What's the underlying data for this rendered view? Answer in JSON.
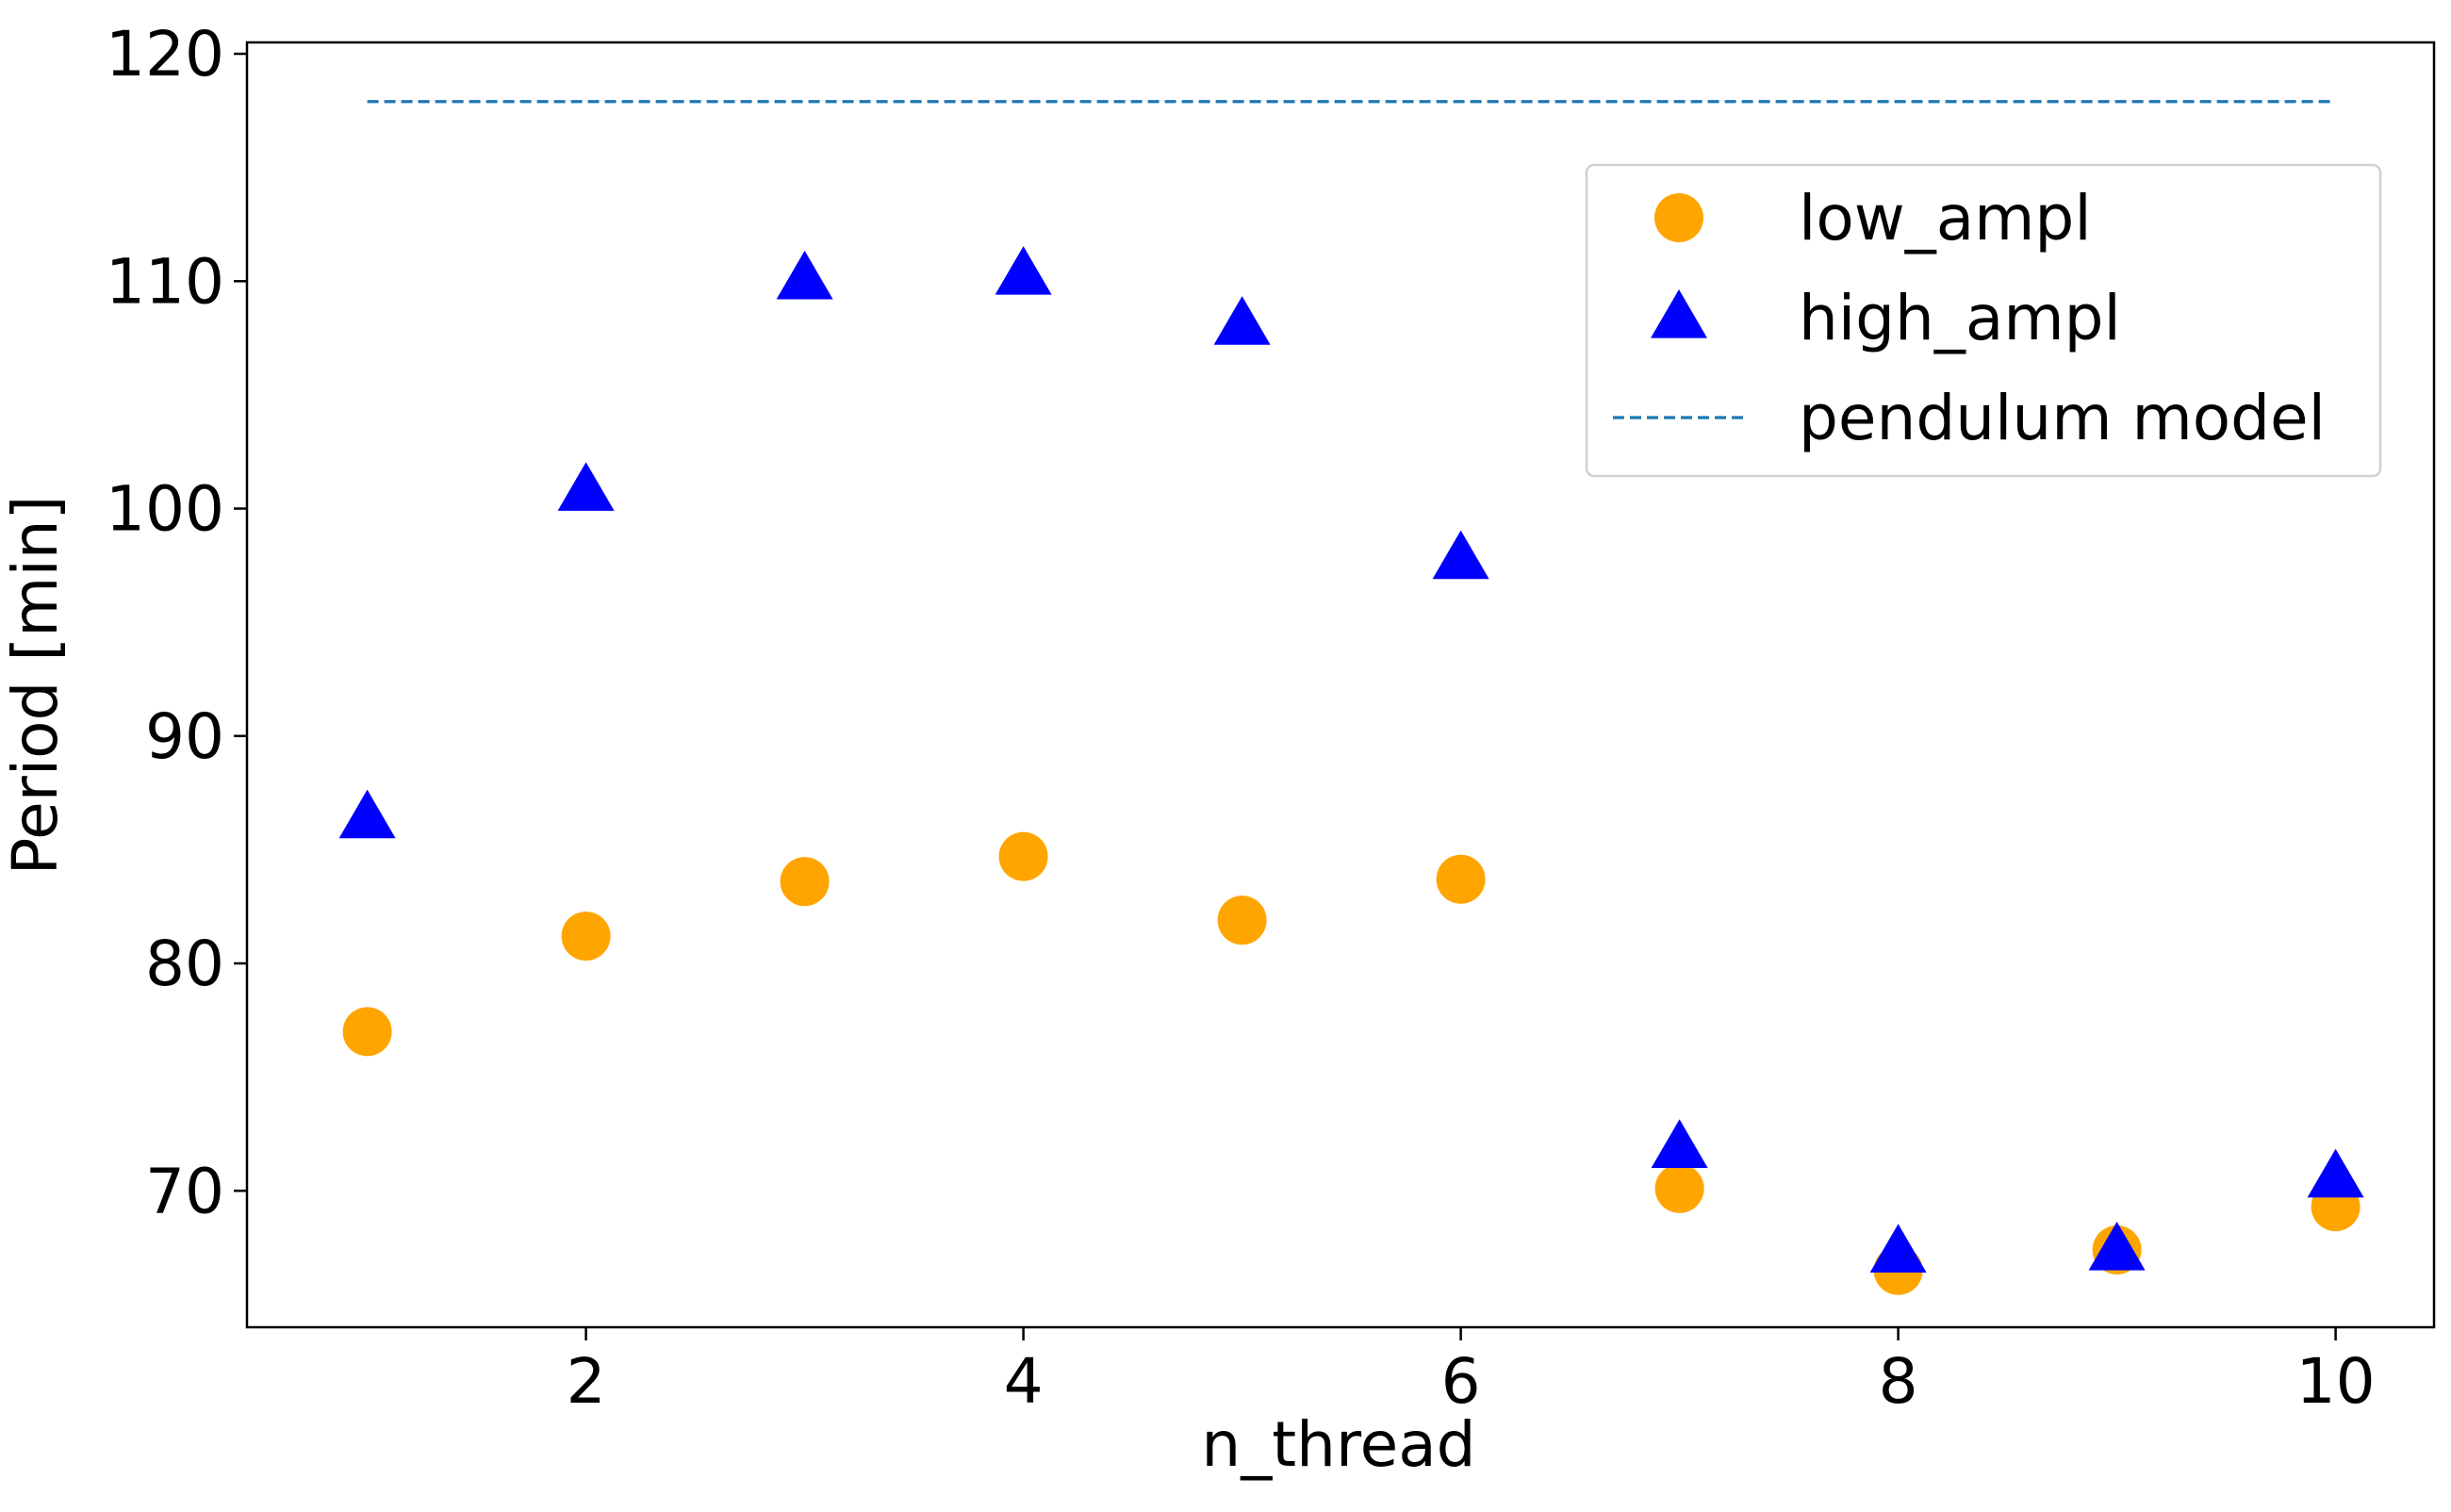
{
  "chart_data": {
    "type": "scatter",
    "title": "",
    "xlabel": "n_thread",
    "ylabel": "Period [min]",
    "xlim": [
      0.45,
      10.45
    ],
    "ylim": [
      64.0,
      120.5
    ],
    "xticks": [
      "2",
      "4",
      "6",
      "8",
      "10"
    ],
    "yticks": [
      "70",
      "80",
      "90",
      "100",
      "110",
      "120"
    ],
    "grid": false,
    "legend_position": "upper right",
    "series": [
      {
        "name": "low_ampl",
        "marker": "circle",
        "color": "#ffa500",
        "x": [
          1,
          2,
          3,
          4,
          5,
          6,
          7,
          8,
          9,
          10
        ],
        "y": [
          77.0,
          81.2,
          83.6,
          84.7,
          81.9,
          83.7,
          70.1,
          66.5,
          67.4,
          69.3
        ]
      },
      {
        "name": "high_ampl",
        "marker": "triangle",
        "color": "#0000ff",
        "x": [
          1,
          2,
          3,
          4,
          5,
          6,
          7,
          8,
          9,
          10
        ],
        "y": [
          86.4,
          100.8,
          110.1,
          110.3,
          108.1,
          97.8,
          71.9,
          67.3,
          67.4,
          70.6
        ]
      },
      {
        "name": "pendulum model",
        "marker": "dashed-line",
        "color": "#1f77b4",
        "x": [
          1,
          10
        ],
        "y": [
          117.9,
          117.9
        ]
      }
    ]
  }
}
